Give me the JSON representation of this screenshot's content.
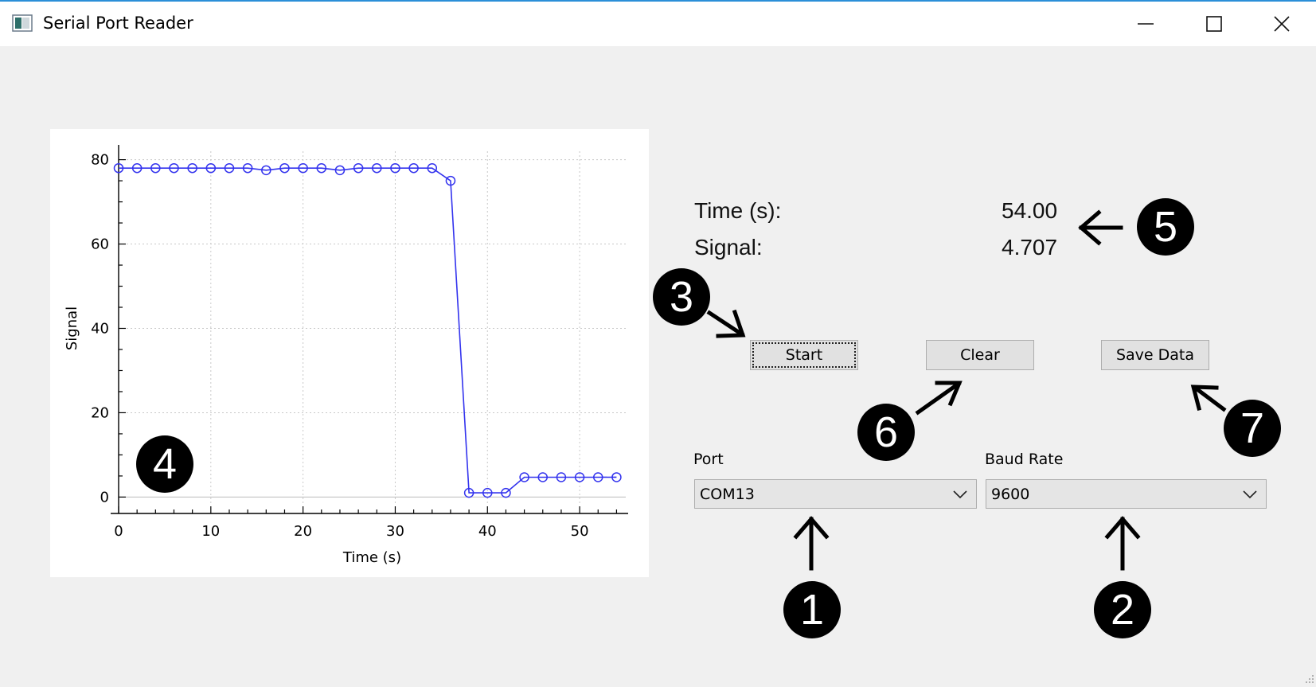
{
  "window": {
    "title": "Serial Port Reader",
    "controls": {
      "minimize": "minimize",
      "maximize": "maximize",
      "close": "close"
    }
  },
  "readout": {
    "time_label": "Time (s):",
    "time_value": "54.00",
    "signal_label": "Signal:",
    "signal_value": "4.707"
  },
  "buttons": {
    "start": "Start",
    "clear": "Clear",
    "save": "Save Data"
  },
  "port": {
    "label": "Port",
    "value": "COM13"
  },
  "baud": {
    "label": "Baud Rate",
    "value": "9600"
  },
  "callouts": {
    "c1": "1",
    "c2": "2",
    "c3": "3",
    "c4": "4",
    "c5": "5",
    "c6": "6",
    "c7": "7"
  },
  "colors": {
    "series": "#3333ee",
    "grid": "#c8c8c8",
    "window_bg": "#f0f0f0",
    "title_accent": "#2b8fd8"
  },
  "chart_data": {
    "type": "line",
    "title": "",
    "xlabel": "Time (s)",
    "ylabel": "Signal",
    "xlim": [
      0,
      55
    ],
    "ylim": [
      -2,
      82
    ],
    "xticks": [
      0,
      10,
      20,
      30,
      40,
      50
    ],
    "yticks": [
      0,
      20,
      40,
      60,
      80
    ],
    "grid": true,
    "series": [
      {
        "name": "Signal",
        "x": [
          0,
          2,
          4,
          6,
          8,
          10,
          12,
          14,
          16,
          18,
          20,
          22,
          24,
          26,
          28,
          30,
          32,
          34,
          36,
          38,
          40,
          42,
          44,
          46,
          48,
          50,
          52,
          54
        ],
        "y": [
          78,
          78,
          78,
          78,
          78,
          78,
          78,
          78,
          77.5,
          78,
          78,
          78,
          77.5,
          78,
          78,
          78,
          78,
          78,
          75,
          1,
          1,
          1,
          4.7,
          4.7,
          4.7,
          4.7,
          4.7,
          4.707
        ]
      }
    ]
  }
}
